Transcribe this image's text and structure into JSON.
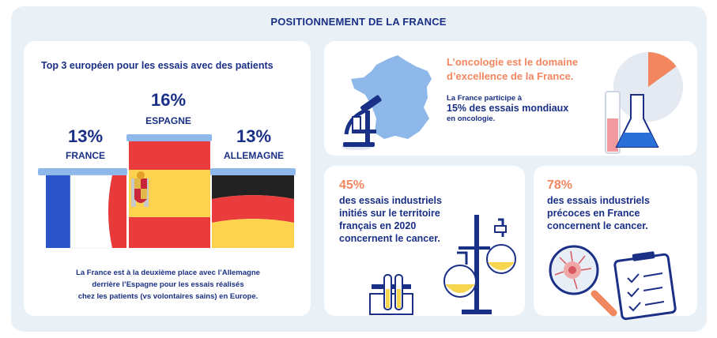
{
  "title": "POSITIONNEMENT DE LA FRANCE",
  "podium": {
    "heading": "Top 3 européen pour les essais avec des patients",
    "items": [
      {
        "country": "FRANCE",
        "percent": "13%",
        "value": 13
      },
      {
        "country": "ESPAGNE",
        "percent": "16%",
        "value": 16
      },
      {
        "country": "ALLEMAGNE",
        "percent": "13%",
        "value": 13
      }
    ],
    "note": [
      "La France est à la deuxième place avec l’Allemagne",
      "derrière l’Espagne pour les essais réalisés",
      "chez les patients (vs volontaires sains) en Europe."
    ]
  },
  "oncology": {
    "heading": [
      "L’oncologie est le domaine",
      "d’excellence de la France."
    ],
    "line1": "La France participe à",
    "line2": "15% des essais mondiaux",
    "line3": "en oncologie.",
    "pie_fraction": 0.15
  },
  "stat1": {
    "percent": "45%",
    "lines": [
      "des essais industriels",
      "initiés sur le territoire",
      "français en 2020",
      "concernent le cancer."
    ]
  },
  "stat2": {
    "percent": "78%",
    "lines": [
      "des essais industriels",
      "précoces en France",
      "concernent le cancer."
    ]
  },
  "colors": {
    "navy": "#1a2f86",
    "orange": "#f2865f",
    "light_blue": "#8fb8ea",
    "panel": "#e9f1f7"
  }
}
